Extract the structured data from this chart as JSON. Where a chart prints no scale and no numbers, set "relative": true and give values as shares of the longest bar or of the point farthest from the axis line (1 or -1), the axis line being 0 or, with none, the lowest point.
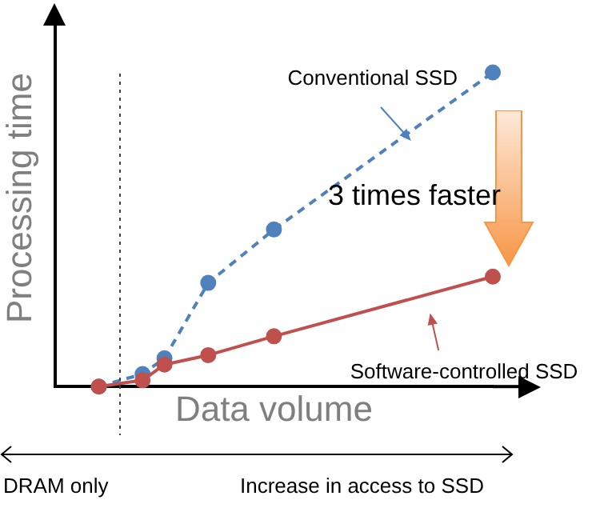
{
  "chart_data": {
    "type": "line",
    "relative": true,
    "xlabel": "Data volume",
    "ylabel": "Processing time",
    "grid": false,
    "marker": "circle",
    "categories": [
      null,
      null,
      null,
      null,
      null,
      null,
      null,
      null,
      null,
      null,
      null,
      null,
      null,
      null,
      null,
      null,
      null,
      null,
      null,
      null,
      null
    ],
    "series": [
      {
        "name": "Conventional SSD",
        "color": "#4f81bd",
        "line_style": "dashed",
        "values": [
          null,
          null,
          0,
          null,
          0.04,
          0.09,
          null,
          0.33,
          null,
          null,
          0.5,
          null,
          null,
          null,
          null,
          null,
          null,
          null,
          null,
          null,
          1
        ]
      },
      {
        "name": "Software-controlled SSD",
        "color": "#c0504d",
        "line_style": "solid",
        "values": [
          null,
          null,
          0,
          null,
          0.02,
          0.07,
          null,
          0.1,
          null,
          null,
          0.16,
          null,
          null,
          null,
          null,
          null,
          null,
          null,
          null,
          null,
          0.35
        ]
      }
    ],
    "annotations": [
      "3 times faster",
      "DRAM only",
      "Increase in access to SSD"
    ]
  }
}
